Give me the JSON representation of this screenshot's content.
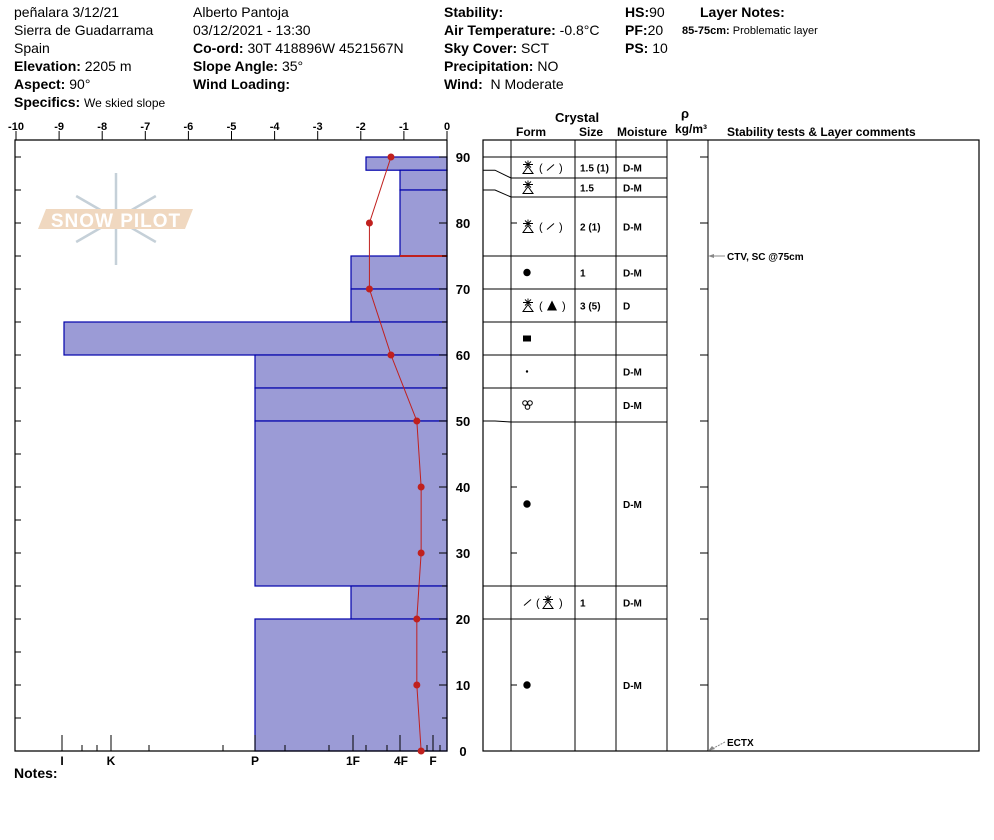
{
  "header": {
    "site": "peñalara 3/12/21",
    "range": "Sierra de Guadarrama",
    "country": "Spain",
    "elevation_label": "Elevation:",
    "elevation": "2205 m",
    "aspect_label": "Aspect:",
    "aspect": "90°",
    "specifics_label": "Specifics:",
    "specifics": "We skied slope",
    "observer": "Alberto Pantoja",
    "datetime": "03/12/2021 - 13:30",
    "coord_label": "Co-ord:",
    "coord": "30T 418896W 4521567N",
    "slope_label": "Slope Angle:",
    "slope": "35°",
    "wind_loading_label": "Wind Loading:",
    "stability_label": "Stability:",
    "air_temp_label": "Air Temperature:",
    "air_temp": "-0.8°C",
    "sky_label": "Sky Cover:",
    "sky": "SCT",
    "precip_label": "Precipitation:",
    "precip": "NO",
    "wind_label": "Wind:",
    "wind": "N Moderate",
    "hs_label": "HS:",
    "hs": "90",
    "pf_label": "PF:",
    "pf": "20",
    "ps_label": "PS:",
    "ps": "10",
    "layer_notes_label": "Layer Notes:",
    "layer_note_range": "85-75cm:",
    "layer_note_text": "Problematic layer"
  },
  "logo": "SNOW PILOT",
  "notes_label": "Notes:",
  "table": {
    "crystal_label": "Crystal",
    "form_label": "Form",
    "size_label": "Size",
    "moisture_label": "Moisture",
    "rho_label": "ρ",
    "density_unit": "kg/m³",
    "comments_label": "Stability tests & Layer comments",
    "rows": [
      {
        "form": [
          "mixed-star-triangle",
          "(",
          "slash",
          ")"
        ],
        "size": "1.5 (1)",
        "moisture": "D-M"
      },
      {
        "form": [
          "mixed-star-triangle"
        ],
        "size": "1.5",
        "moisture": "D-M"
      },
      {
        "form": [
          "mixed-star-triangle",
          "(",
          "slash",
          ")"
        ],
        "size": "2 (1)",
        "moisture": "D-M"
      },
      {
        "form": [
          "dot-large"
        ],
        "size": "1",
        "moisture": "D-M"
      },
      {
        "form": [
          "mixed-star-triangle",
          "(",
          "triangle-filled",
          ")"
        ],
        "size": "3 (5)",
        "moisture": "D"
      },
      {
        "form": [
          "square-filled"
        ],
        "size": "",
        "moisture": ""
      },
      {
        "form": [
          "dot-small"
        ],
        "size": "",
        "moisture": "D-M"
      },
      {
        "form": [
          "melt-cluster"
        ],
        "size": "",
        "moisture": "D-M"
      },
      {
        "form": [
          "dot-large"
        ],
        "size": "",
        "moisture": "D-M"
      },
      {
        "form": [
          "slash",
          "(",
          "mixed-star-triangle",
          ")"
        ],
        "size": "1",
        "moisture": "D-M"
      },
      {
        "form": [
          "dot-large"
        ],
        "size": "",
        "moisture": "D-M"
      }
    ],
    "comments": [
      {
        "height_cm": 75,
        "text": "CTV, SC @75cm"
      },
      {
        "height_cm": 0,
        "text": "ECTX"
      }
    ]
  },
  "chart_data": {
    "type": "line",
    "temperature_axis": {
      "ticks": [
        -10,
        -9,
        -8,
        -7,
        -6,
        -5,
        -4,
        -3,
        -2,
        -1,
        0
      ],
      "range": [
        -10,
        0
      ]
    },
    "height_axis": {
      "ticks": [
        0,
        10,
        20,
        30,
        40,
        50,
        60,
        70,
        80,
        90
      ],
      "range": [
        0,
        90
      ],
      "unit": "cm"
    },
    "hardness_axis": {
      "labels": [
        "I",
        "K",
        "P",
        "1F",
        "4F",
        "F"
      ]
    },
    "temperature_profile": [
      {
        "height": 90,
        "temp": -1.3
      },
      {
        "height": 80,
        "temp": -1.8
      },
      {
        "height": 70,
        "temp": -1.8
      },
      {
        "height": 60,
        "temp": -1.3
      },
      {
        "height": 50,
        "temp": -0.7
      },
      {
        "height": 40,
        "temp": -0.6
      },
      {
        "height": 30,
        "temp": -0.6
      },
      {
        "height": 20,
        "temp": -0.7
      },
      {
        "height": 10,
        "temp": -0.7
      },
      {
        "height": 0,
        "temp": -0.6
      }
    ],
    "hardness_layers": [
      {
        "top": 90,
        "bottom": 88,
        "hardness": "1F+"
      },
      {
        "top": 88,
        "bottom": 85,
        "hardness": "4F"
      },
      {
        "top": 85,
        "bottom": 75,
        "hardness": "4F"
      },
      {
        "top": 75,
        "bottom": 70,
        "hardness": "1F"
      },
      {
        "top": 70,
        "bottom": 65,
        "hardness": "1F"
      },
      {
        "top": 65,
        "bottom": 60,
        "hardness": "I"
      },
      {
        "top": 60,
        "bottom": 55,
        "hardness": "P"
      },
      {
        "top": 55,
        "bottom": 50,
        "hardness": "P"
      },
      {
        "top": 50,
        "bottom": 25,
        "hardness": "P"
      },
      {
        "top": 25,
        "bottom": 20,
        "hardness": "1F"
      },
      {
        "top": 20,
        "bottom": 0,
        "hardness": "P"
      }
    ],
    "critical_layer_cm": 75,
    "colors": {
      "hardness_fill": "#9b9bd6",
      "hardness_stroke": "#0000aa",
      "temperature": "#c0201e"
    }
  }
}
